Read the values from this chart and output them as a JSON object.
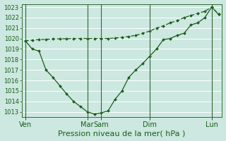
{
  "background_color": "#cce8e0",
  "grid_color": "#ffffff",
  "line_color": "#1a5c1a",
  "vline_color": "#336633",
  "xlabel": "Pression niveau de la mer( hPa )",
  "ylim_min": 1012.5,
  "ylim_max": 1023.3,
  "yticks": [
    1013,
    1014,
    1015,
    1016,
    1017,
    1018,
    1019,
    1020,
    1021,
    1022,
    1023
  ],
  "xlabel_fontsize": 8,
  "ytick_fontsize": 6,
  "xtick_fontsize": 7,
  "day_labels": [
    "Ven",
    "Mar",
    "Sam",
    "Dim",
    "Lun"
  ],
  "day_positions": [
    0,
    9,
    11,
    18,
    27
  ],
  "vline_positions": [
    0,
    9,
    11,
    18,
    27
  ],
  "xlim_min": -0.5,
  "xlim_max": 28.5,
  "series1_x": [
    0,
    1,
    2,
    3,
    4,
    5,
    6,
    7,
    8,
    9,
    10,
    11,
    12,
    13,
    14,
    15,
    16,
    17,
    18,
    19,
    20,
    21,
    22,
    23,
    24,
    25,
    26,
    27,
    28
  ],
  "series1_y": [
    1019.8,
    1019.0,
    1018.8,
    1017.0,
    1016.3,
    1015.5,
    1014.7,
    1014.0,
    1013.5,
    1013.0,
    1012.8,
    1012.9,
    1013.1,
    1014.2,
    1015.0,
    1016.3,
    1017.0,
    1017.6,
    1018.3,
    1019.0,
    1019.9,
    1020.0,
    1020.3,
    1020.5,
    1021.3,
    1021.5,
    1022.0,
    1023.0,
    1022.3
  ],
  "series2_x": [
    0,
    1,
    2,
    3,
    4,
    5,
    6,
    7,
    8,
    9,
    10,
    11,
    12,
    13,
    14,
    15,
    16,
    17,
    18,
    19,
    20,
    21,
    22,
    23,
    24,
    25,
    26,
    27,
    28
  ],
  "series2_y": [
    1019.8,
    1019.85,
    1019.9,
    1019.92,
    1019.95,
    1019.97,
    1019.98,
    1019.99,
    1020.0,
    1020.0,
    1020.0,
    1020.0,
    1020.0,
    1020.05,
    1020.1,
    1020.2,
    1020.3,
    1020.5,
    1020.7,
    1021.0,
    1021.2,
    1021.5,
    1021.7,
    1022.0,
    1022.2,
    1022.4,
    1022.6,
    1023.0,
    1022.3
  ]
}
